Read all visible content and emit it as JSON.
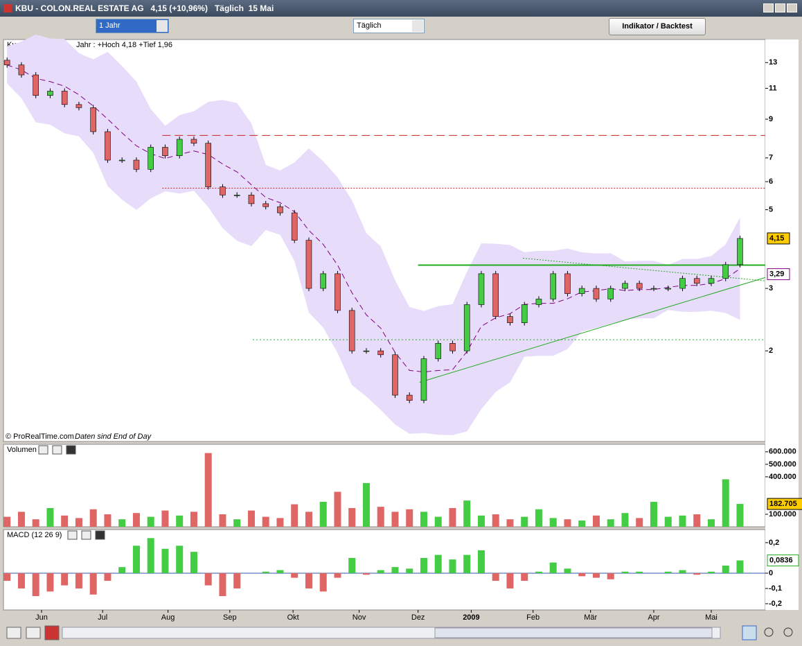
{
  "window": {
    "title": "KBU - COLON.REAL ESTATE AG   4,15 (+10,96%)   Täglich  15 Mai"
  },
  "toolbar": {
    "period": "1 Jahr",
    "interval": "Täglich",
    "button": "Indikator / Backtest"
  },
  "chart_data": [
    {
      "type": "candlestick",
      "title": "Kurs",
      "subtitle": "Jahr : +Hoch 4,18 +Tief 1,96",
      "annotations": [
        "© ProRealTime.com",
        "Daten sind End of Day"
      ],
      "open": [
        13.2,
        12.8,
        12.0,
        10.5,
        10.8,
        9.9,
        9.7,
        8.3,
        6.9,
        6.9,
        6.5,
        7.5,
        7.1,
        7.9,
        7.7,
        5.8,
        5.5,
        5.5,
        5.2,
        5.1,
        4.9,
        4.1,
        3.0,
        3.3,
        2.6,
        2.0,
        2.0,
        1.95,
        1.5,
        1.45,
        1.9,
        2.1,
        2.0,
        2.7,
        3.3,
        2.5,
        2.4,
        2.7,
        2.8,
        3.3,
        2.9,
        3.0,
        2.8,
        3.0,
        3.1,
        3.0,
        3.0,
        3.0,
        3.2,
        3.1,
        3.2,
        3.5
      ],
      "close": [
        12.8,
        12.0,
        10.5,
        10.8,
        9.9,
        9.7,
        8.3,
        6.9,
        6.9,
        6.5,
        7.5,
        7.1,
        7.9,
        7.7,
        5.8,
        5.5,
        5.5,
        5.2,
        5.1,
        4.9,
        4.1,
        3.0,
        3.3,
        2.6,
        2.0,
        2.0,
        1.95,
        1.5,
        1.45,
        1.9,
        2.1,
        2.0,
        2.7,
        3.3,
        2.5,
        2.4,
        2.7,
        2.8,
        3.3,
        2.9,
        3.0,
        2.8,
        3.0,
        3.1,
        3.0,
        3.0,
        3.0,
        3.2,
        3.1,
        3.2,
        3.5,
        4.15
      ],
      "up_color": "#44cc44",
      "down_color": "#e06666",
      "band_color": "#e8dcfb",
      "ma_color": "#800080",
      "log": true,
      "ylim": [
        1.11,
        15.1
      ],
      "yticks": [
        2,
        3,
        5,
        6,
        7,
        9,
        11,
        13
      ],
      "xlim": [
        -0.25,
        52.76
      ],
      "levels": [
        {
          "value": 8.1,
          "start": 10.8,
          "color": "#cc2222",
          "dash": "12 6"
        },
        {
          "value": 5.75,
          "start": 10.8,
          "color": "#cc2222",
          "dash": "2 2"
        },
        {
          "value": 3.49,
          "start": 28.6,
          "color": "#22aa22",
          "dash": "none"
        },
        {
          "value": 2.15,
          "start": 17.1,
          "color": "#22aa22",
          "dash": "2 3"
        }
      ],
      "trendlines": [
        {
          "from": [
            28.7,
            1.63
          ],
          "to": [
            52.76,
            3.22
          ],
          "color": "#22aa22",
          "dash": "none"
        },
        {
          "from": [
            35.9,
            3.65
          ],
          "to": [
            52.76,
            3.15
          ],
          "color": "#22aa22",
          "dash": "2 2"
        }
      ],
      "badges": [
        {
          "value": 4.15,
          "label": "4,15",
          "color": "#ffcc00",
          "border": "#000"
        },
        {
          "value": 3.29,
          "label": "3,29",
          "color": "#ffffff",
          "border": "#800080"
        }
      ]
    },
    {
      "type": "bar",
      "title": "Volumen",
      "values": [
        80000,
        120000,
        60000,
        150000,
        90000,
        70000,
        140000,
        100000,
        60000,
        110000,
        80000,
        130000,
        90000,
        120000,
        590000,
        100000,
        60000,
        130000,
        80000,
        70000,
        180000,
        120000,
        200000,
        280000,
        150000,
        350000,
        160000,
        120000,
        140000,
        120000,
        80000,
        150000,
        210000,
        90000,
        100000,
        60000,
        80000,
        140000,
        70000,
        60000,
        50000,
        90000,
        60000,
        110000,
        70000,
        200000,
        80000,
        90000,
        100000,
        60000,
        380000,
        182705
      ],
      "ylim": [
        0,
        660000
      ],
      "yticks": [
        {
          "value": 100000,
          "label": "100.000"
        },
        {
          "value": 400000,
          "label": "400.000"
        },
        {
          "value": 500000,
          "label": "500.000"
        },
        {
          "value": 600000,
          "label": "600.000"
        }
      ],
      "badges": [
        {
          "value": 182705,
          "label": "182.705",
          "color": "#ffcc00",
          "border": "#000"
        }
      ]
    },
    {
      "type": "bar",
      "title": "MACD (12 26 9)",
      "values": [
        -0.05,
        -0.1,
        -0.15,
        -0.12,
        -0.08,
        -0.1,
        -0.14,
        -0.05,
        0.04,
        0.18,
        0.23,
        0.16,
        0.18,
        0.14,
        -0.08,
        -0.15,
        -0.1,
        0,
        0.01,
        0.02,
        -0.03,
        -0.1,
        -0.12,
        -0.03,
        0.1,
        -0.01,
        0.02,
        0.04,
        0.03,
        0.1,
        0.12,
        0.09,
        0.12,
        0.15,
        -0.05,
        -0.1,
        -0.05,
        0.01,
        0.07,
        0.03,
        -0.02,
        -0.03,
        -0.04,
        0.01,
        0.01,
        0,
        0.01,
        0.02,
        -0.01,
        0.01,
        0.05,
        0.0836
      ],
      "ylim": [
        -0.241,
        0.286
      ],
      "yticks": [
        {
          "value": 0.2,
          "label": "0,2"
        },
        0,
        {
          "value": -0.1,
          "label": "-0,1"
        },
        {
          "value": -0.2,
          "label": "-0,2"
        }
      ],
      "xticks": [
        {
          "value": 2.4,
          "label": "Jun"
        },
        {
          "value": 6.65,
          "label": "Jul"
        },
        {
          "value": 11.2,
          "label": "Aug"
        },
        {
          "value": 15.5,
          "label": "Sep"
        },
        {
          "value": 19.9,
          "label": "Okt"
        },
        {
          "value": 24.5,
          "label": "Nov"
        },
        {
          "value": 28.6,
          "label": "Dez"
        },
        {
          "value": 32.3,
          "label": "2009"
        },
        {
          "value": 36.6,
          "label": "Feb"
        },
        {
          "value": 40.6,
          "label": "Mär"
        },
        {
          "value": 45,
          "label": "Apr"
        },
        {
          "value": 49,
          "label": "Mai"
        }
      ],
      "badges": [
        {
          "value": 0.0836,
          "label": "0,0836",
          "color": "#ffffff",
          "border": "#22aa22"
        }
      ]
    }
  ]
}
